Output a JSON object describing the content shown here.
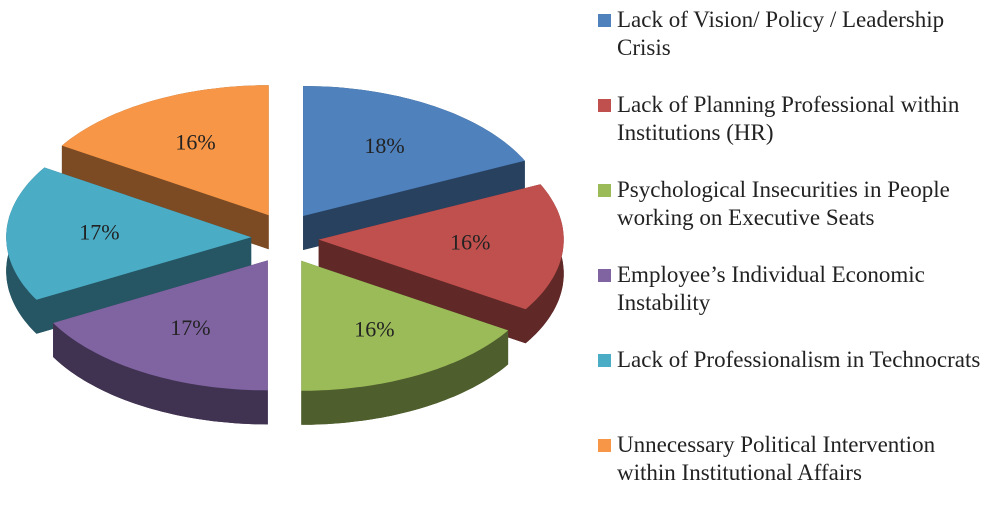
{
  "chart_data": {
    "type": "pie3d",
    "categories": [
      "Lack of Vision/ Policy  / Leadership Crisis",
      "Lack of Planning Professional within Institutions (HR)",
      "Psychological Insecurities in People working on Executive Seats",
      "Employee’s Individual Economic Instability",
      "Lack of Professionalism in Technocrats",
      "Unnecessary Political Intervention within Institutional Affairs"
    ],
    "values": [
      18,
      16,
      16,
      17,
      17,
      16
    ],
    "value_labels": [
      "18%",
      "16%",
      "16%",
      "17%",
      "17%",
      "16%"
    ],
    "colors": [
      "#4f81bd",
      "#c0504d",
      "#9bbb59",
      "#8064a2",
      "#4bacc6",
      "#f79646"
    ],
    "legend": "right"
  }
}
